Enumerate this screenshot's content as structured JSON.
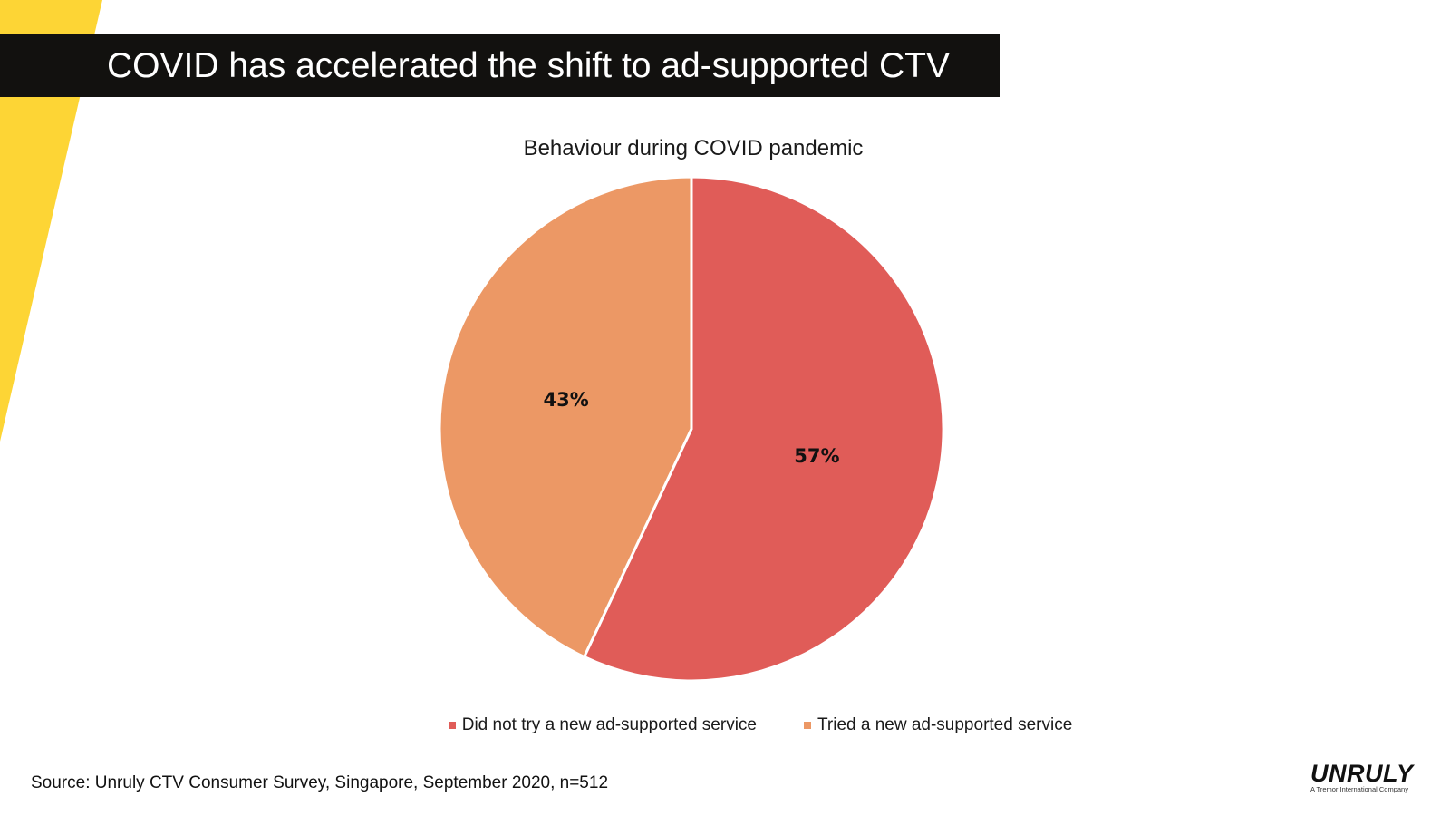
{
  "slide": {
    "title": "COVID has accelerated the shift to ad-supported CTV",
    "source": "Source: Unruly CTV Consumer Survey, Singapore, September 2020, n=512",
    "logo": {
      "wordmark": "UNRULY",
      "tagline": "A Tremor International Company"
    },
    "colors": {
      "title_bar": "#12110f",
      "accent_yellow": "#fdd535"
    }
  },
  "chart_data": {
    "type": "pie",
    "title": "Behaviour during COVID pandemic",
    "slices": [
      {
        "name": "Did not try a new ad-supported service",
        "value": 57,
        "label": "57%",
        "color": "#e05c58"
      },
      {
        "name": "Tried a new ad-supported service",
        "value": 43,
        "label": "43%",
        "color": "#ec9865"
      }
    ],
    "legend_position": "bottom"
  }
}
